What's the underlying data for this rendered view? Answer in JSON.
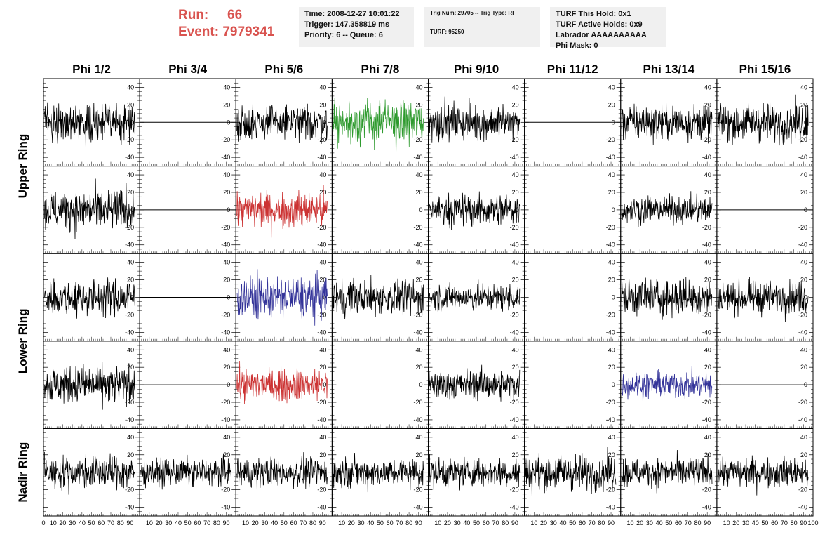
{
  "header": {
    "run_label": "Run:",
    "run_value": "66",
    "event_label": "Event:",
    "event_value": "7979341",
    "time": "Time: 2008-12-27 10:01:22",
    "trigger": "Trigger: 147.358819 ms",
    "priority": "Priority: 6 -- Queue: 6",
    "trig_num": "Trig Num: 29705 -- Trig Type: RF",
    "turf": "TURF: 95250",
    "turf_hold": "TURF This Hold: 0x1",
    "turf_active": "TURF Active Holds: 0x9",
    "labrador": "Labrador AAAAAAAAAA",
    "phi_mask": "Phi Mask: 0"
  },
  "colors": {
    "run_text": "#d9534f",
    "normal": "#000000",
    "green": "#2e9a2e",
    "red": "#cc3333",
    "blue": "#333399"
  },
  "chart_data": {
    "type": "line",
    "columns": [
      "Phi 1/2",
      "Phi 3/4",
      "Phi 5/6",
      "Phi 7/8",
      "Phi 9/10",
      "Phi 11/12",
      "Phi 13/14",
      "Phi 15/16"
    ],
    "rows": [
      "Upper Ring",
      "Upper Ring",
      "Lower Ring",
      "Lower Ring",
      "Nadir Ring"
    ],
    "ring_labels": [
      {
        "label": "Upper Ring",
        "rows": [
          0,
          1
        ]
      },
      {
        "label": "Lower Ring",
        "rows": [
          2,
          3
        ]
      },
      {
        "label": "Nadir Ring",
        "rows": [
          4
        ]
      }
    ],
    "xlim": [
      0,
      100
    ],
    "ylim": [
      -50,
      50
    ],
    "x_ticks": [
      "0",
      "10",
      "20",
      "30",
      "40",
      "50",
      "60",
      "70",
      "80",
      "90",
      "100"
    ],
    "y_ticks": [
      40,
      20,
      0,
      -20,
      -40
    ],
    "panels": [
      [
        {
          "state": "signal",
          "color": "normal",
          "amp": 12
        },
        {
          "state": "flat"
        },
        {
          "state": "signal",
          "color": "normal",
          "amp": 12
        },
        {
          "state": "signal",
          "color": "green",
          "amp": 15
        },
        {
          "state": "signal",
          "color": "normal",
          "amp": 12
        },
        {
          "state": "flat"
        },
        {
          "state": "signal",
          "color": "normal",
          "amp": 12
        },
        {
          "state": "signal",
          "color": "normal",
          "amp": 13
        }
      ],
      [
        {
          "state": "signal",
          "color": "normal",
          "amp": 14
        },
        {
          "state": "flat"
        },
        {
          "state": "signal",
          "color": "red",
          "amp": 12
        },
        {
          "state": "empty"
        },
        {
          "state": "signal",
          "color": "normal",
          "amp": 11
        },
        {
          "state": "empty"
        },
        {
          "state": "signal",
          "color": "normal",
          "amp": 9
        },
        {
          "state": "flat"
        }
      ],
      [
        {
          "state": "signal",
          "color": "normal",
          "amp": 12
        },
        {
          "state": "flat"
        },
        {
          "state": "signal",
          "color": "blue",
          "amp": 14
        },
        {
          "state": "signal",
          "color": "normal",
          "amp": 12
        },
        {
          "state": "signal",
          "color": "normal",
          "amp": 9
        },
        {
          "state": "empty"
        },
        {
          "state": "signal",
          "color": "normal",
          "amp": 13
        },
        {
          "state": "signal",
          "color": "normal",
          "amp": 11
        }
      ],
      [
        {
          "state": "signal",
          "color": "normal",
          "amp": 13
        },
        {
          "state": "flat"
        },
        {
          "state": "signal",
          "color": "red",
          "amp": 11
        },
        {
          "state": "empty"
        },
        {
          "state": "signal",
          "color": "normal",
          "amp": 10
        },
        {
          "state": "empty"
        },
        {
          "state": "signal",
          "color": "blue",
          "amp": 9
        },
        {
          "state": "flat"
        }
      ],
      [
        {
          "state": "signal",
          "color": "normal",
          "amp": 11
        },
        {
          "state": "signal",
          "color": "normal",
          "amp": 9
        },
        {
          "state": "signal",
          "color": "normal",
          "amp": 10
        },
        {
          "state": "signal",
          "color": "normal",
          "amp": 10
        },
        {
          "state": "signal",
          "color": "normal",
          "amp": 10
        },
        {
          "state": "signal",
          "color": "normal",
          "amp": 12
        },
        {
          "state": "signal",
          "color": "normal",
          "amp": 10
        },
        {
          "state": "signal",
          "color": "normal",
          "amp": 10
        }
      ]
    ]
  }
}
